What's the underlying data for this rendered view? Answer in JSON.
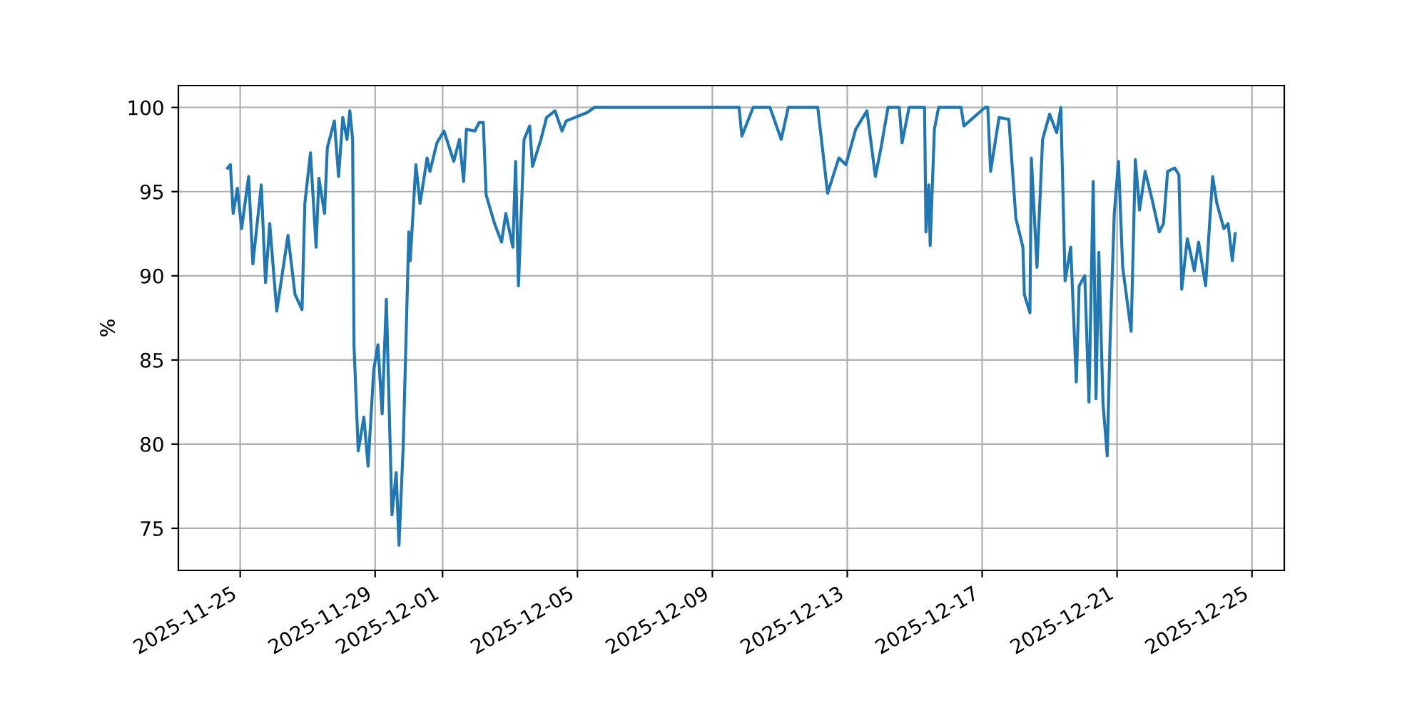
{
  "chart_data": {
    "type": "line",
    "ylabel": "%",
    "grid": true,
    "line_style": "solid",
    "xlim": [
      "2025-11-23T04:00",
      "2025-12-25T23:00"
    ],
    "ylim": [
      72.5,
      101.3
    ],
    "xticks": [
      "2025-11-25",
      "2025-11-29",
      "2025-12-01",
      "2025-12-05",
      "2025-12-09",
      "2025-12-13",
      "2025-12-17",
      "2025-12-21",
      "2025-12-25"
    ],
    "yticks": [
      75,
      80,
      85,
      90,
      95,
      100
    ],
    "x": [
      "2025-11-24T15:00",
      "2025-11-24T17:00",
      "2025-11-24T19:00",
      "2025-11-24T22:00",
      "2025-11-25T01:00",
      "2025-11-25T06:00",
      "2025-11-25T09:00",
      "2025-11-25T15:00",
      "2025-11-25T18:00",
      "2025-11-25T21:00",
      "2025-11-26T02:00",
      "2025-11-26T10:00",
      "2025-11-26T15:00",
      "2025-11-26T20:00",
      "2025-11-26T22:00",
      "2025-11-27T02:00",
      "2025-11-27T06:00",
      "2025-11-27T08:00",
      "2025-11-27T12:00",
      "2025-11-27T14:00",
      "2025-11-27T19:00",
      "2025-11-27T22:00",
      "2025-11-28T01:00",
      "2025-11-28T04:00",
      "2025-11-28T06:00",
      "2025-11-28T08:00",
      "2025-11-28T09:00",
      "2025-11-28T12:00",
      "2025-11-28T16:00",
      "2025-11-28T19:00",
      "2025-11-28T23:00",
      "2025-11-29T02:00",
      "2025-11-29T05:00",
      "2025-11-29T08:00",
      "2025-11-29T12:00",
      "2025-11-29T15:00",
      "2025-11-29T17:00",
      "2025-11-29T20:00",
      "2025-11-30T00:00",
      "2025-11-30T01:00",
      "2025-11-30T05:00",
      "2025-11-30T08:00",
      "2025-11-30T13:00",
      "2025-11-30T15:00",
      "2025-11-30T20:00",
      "2025-12-01T01:00",
      "2025-12-01T08:00",
      "2025-12-01T12:00",
      "2025-12-01T15:00",
      "2025-12-01T17:00",
      "2025-12-01T23:00",
      "2025-12-02T02:00",
      "2025-12-02T05:00",
      "2025-12-02T07:00",
      "2025-12-02T13:00",
      "2025-12-02T18:00",
      "2025-12-02T21:00",
      "2025-12-03T02:00",
      "2025-12-03T04:00",
      "2025-12-03T06:00",
      "2025-12-03T10:00",
      "2025-12-03T14:00",
      "2025-12-03T16:00",
      "2025-12-03T22:00",
      "2025-12-04T02:00",
      "2025-12-04T08:00",
      "2025-12-04T13:00",
      "2025-12-04T16:00",
      "2025-12-05T07:00",
      "2025-12-05T12:00",
      "2025-12-09T19:00",
      "2025-12-09T21:00",
      "2025-12-10T05:00",
      "2025-12-10T17:00",
      "2025-12-11T01:00",
      "2025-12-11T06:00",
      "2025-12-12T03:00",
      "2025-12-12T10:00",
      "2025-12-12T18:00",
      "2025-12-12T23:00",
      "2025-12-13T06:00",
      "2025-12-13T14:00",
      "2025-12-13T20:00",
      "2025-12-14T00:00",
      "2025-12-14T05:00",
      "2025-12-14T13:00",
      "2025-12-14T15:00",
      "2025-12-14T20:00",
      "2025-12-15T07:00",
      "2025-12-15T08:00",
      "2025-12-15T10:00",
      "2025-12-15T11:00",
      "2025-12-15T14:00",
      "2025-12-15T17:00",
      "2025-12-16T09:00",
      "2025-12-16T11:00",
      "2025-12-17T02:00",
      "2025-12-17T04:00",
      "2025-12-17T06:00",
      "2025-12-17T12:00",
      "2025-12-17T19:00",
      "2025-12-18T00:00",
      "2025-12-18T05:00",
      "2025-12-18T06:00",
      "2025-12-18T10:00",
      "2025-12-18T11:00",
      "2025-12-18T15:00",
      "2025-12-18T19:00",
      "2025-12-19T00:00",
      "2025-12-19T05:00",
      "2025-12-19T08:00",
      "2025-12-19T11:00",
      "2025-12-19T15:00",
      "2025-12-19T19:00",
      "2025-12-19T21:00",
      "2025-12-20T01:00",
      "2025-12-20T04:00",
      "2025-12-20T07:00",
      "2025-12-20T09:00",
      "2025-12-20T11:00",
      "2025-12-20T14:00",
      "2025-12-20T17:00",
      "2025-12-20T19:00",
      "2025-12-20T22:00",
      "2025-12-21T01:00",
      "2025-12-21T04:00",
      "2025-12-21T10:00",
      "2025-12-21T13:00",
      "2025-12-21T16:00",
      "2025-12-21T20:00",
      "2025-12-22T01:00",
      "2025-12-22T06:00",
      "2025-12-22T09:00",
      "2025-12-22T12:00",
      "2025-12-22T17:00",
      "2025-12-22T20:00",
      "2025-12-22T22:00",
      "2025-12-23T02:00",
      "2025-12-23T07:00",
      "2025-12-23T10:00",
      "2025-12-23T15:00",
      "2025-12-23T20:00",
      "2025-12-23T23:00",
      "2025-12-24T04:00",
      "2025-12-24T07:00",
      "2025-12-24T10:00",
      "2025-12-24T12:00"
    ],
    "series": [
      {
        "color": "#1f77b4",
        "values": [
          96.4,
          96.6,
          93.7,
          95.2,
          92.8,
          95.9,
          90.7,
          95.4,
          89.6,
          93.1,
          87.9,
          92.4,
          88.9,
          88.0,
          94.3,
          97.3,
          91.7,
          95.8,
          93.7,
          97.6,
          99.2,
          95.9,
          99.4,
          98.1,
          99.8,
          98.1,
          85.8,
          79.6,
          81.6,
          78.7,
          84.4,
          85.9,
          81.8,
          88.6,
          75.8,
          78.3,
          74.0,
          79.9,
          92.6,
          90.9,
          96.6,
          94.3,
          97.0,
          96.2,
          97.9,
          98.6,
          96.8,
          98.1,
          95.6,
          98.7,
          98.6,
          99.1,
          99.1,
          94.8,
          93.1,
          92.0,
          93.7,
          91.7,
          96.8,
          89.4,
          98.1,
          98.9,
          96.5,
          98.1,
          99.4,
          99.8,
          98.6,
          99.2,
          99.7,
          100,
          100,
          98.3,
          100,
          100,
          98.1,
          100,
          100,
          94.9,
          97.0,
          96.6,
          98.7,
          99.8,
          95.9,
          97.6,
          100,
          100,
          97.9,
          100,
          100,
          92.6,
          95.4,
          91.8,
          98.7,
          100,
          100,
          98.9,
          100,
          100,
          96.2,
          99.4,
          99.3,
          93.4,
          91.7,
          88.9,
          87.8,
          97.0,
          90.5,
          98.1,
          99.6,
          98.5,
          100,
          89.7,
          91.7,
          83.7,
          89.4,
          90.0,
          82.5,
          95.6,
          82.7,
          91.4,
          82.4,
          79.3,
          86.1,
          93.7,
          96.8,
          90.5,
          86.7,
          96.9,
          93.9,
          96.2,
          94.5,
          92.6,
          93.1,
          96.2,
          96.4,
          96.0,
          89.2,
          92.2,
          90.3,
          92.0,
          89.4,
          95.9,
          94.3,
          92.8,
          93.1,
          90.9,
          92.5
        ]
      }
    ]
  }
}
